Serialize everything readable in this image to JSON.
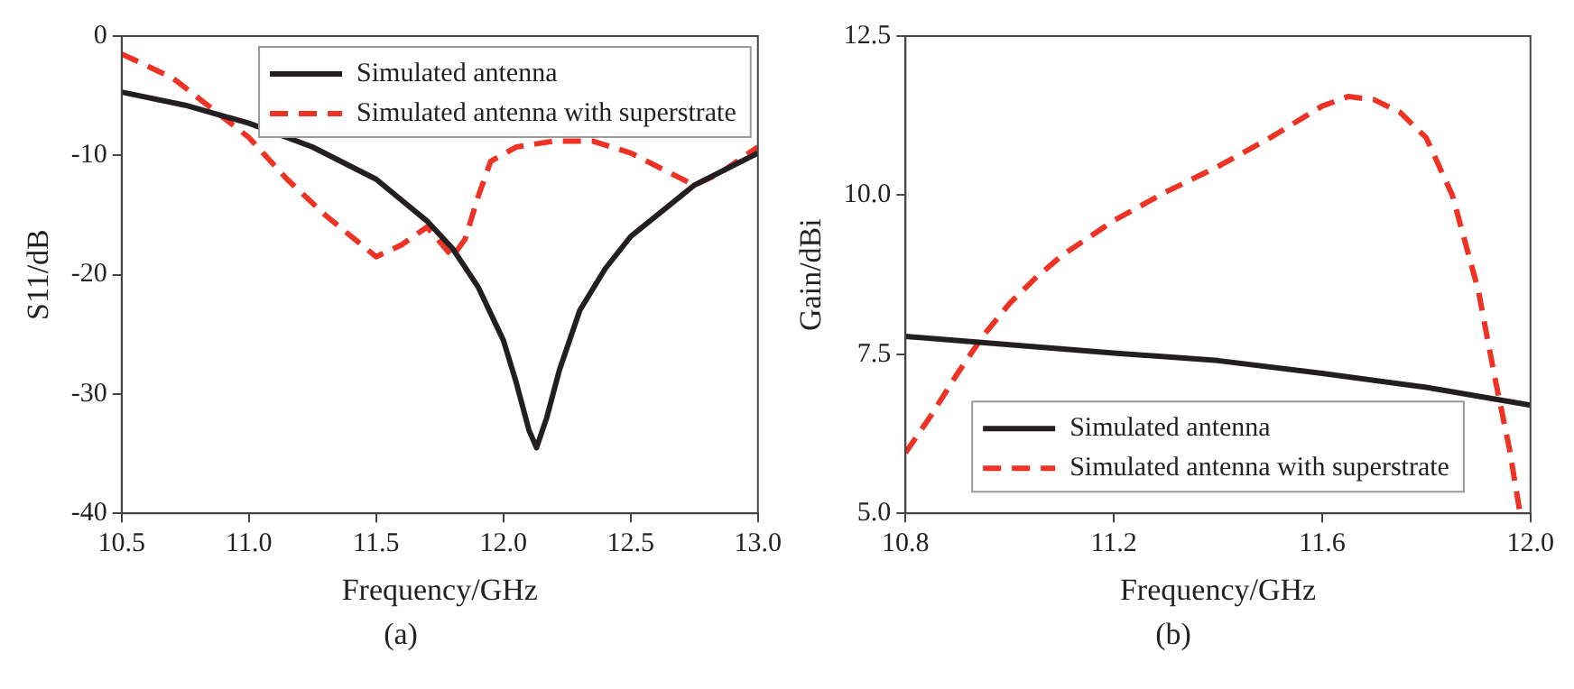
{
  "chart_data": [
    {
      "type": "line",
      "xlabel": "Frequency/GHz",
      "ylabel": "S11/dB",
      "xlim": [
        10.5,
        13.0
      ],
      "xticks": [
        {
          "value": 10.5,
          "label": "10.5"
        },
        {
          "value": 11,
          "label": "11.0"
        },
        {
          "value": 11.5,
          "label": "11.5"
        },
        {
          "value": 12,
          "label": "12.0"
        },
        {
          "value": 12.5,
          "label": "12.5"
        },
        {
          "value": 13,
          "label": "13.0"
        }
      ],
      "ylim": [
        -40,
        0
      ],
      "yticks": [
        -40,
        -30,
        -20,
        -10,
        0
      ],
      "legend": "top right",
      "annotations": [
        "(a)"
      ],
      "series": [
        {
          "name": "Simulated antenna",
          "color": "#231f20",
          "line_style": "solid",
          "x": [
            10.5,
            10.75,
            11.0,
            11.25,
            11.5,
            11.7,
            11.8,
            11.9,
            12.0,
            12.05,
            12.1,
            12.13,
            12.17,
            12.22,
            12.3,
            12.4,
            12.5,
            12.75,
            13.0
          ],
          "values": [
            -4.7,
            -5.8,
            -7.3,
            -9.3,
            -12,
            -15.5,
            -17.8,
            -21,
            -25.5,
            -29,
            -33,
            -34.5,
            -32,
            -28,
            -23,
            -19.5,
            -16.8,
            -12.5,
            -9.8
          ]
        },
        {
          "name": "Simulated antenna with superstrate",
          "color": "#ee3224",
          "line_style": "dashed",
          "x": [
            10.5,
            10.7,
            10.85,
            11.0,
            11.15,
            11.3,
            11.5,
            11.6,
            11.7,
            11.8,
            11.85,
            11.9,
            11.95,
            12.05,
            12.2,
            12.35,
            12.5,
            12.75,
            12.85,
            13.0
          ],
          "values": [
            -1.5,
            -3.5,
            -6,
            -8.5,
            -12,
            -15,
            -18.5,
            -17.5,
            -16,
            -18.5,
            -17,
            -13.5,
            -10.5,
            -9.3,
            -8.8,
            -8.8,
            -9.8,
            -12.5,
            -11.5,
            -9.3
          ]
        }
      ]
    },
    {
      "type": "line",
      "xlabel": "Frequency/GHz",
      "ylabel": "Gain/dBi",
      "xlim": [
        10.8,
        12.0
      ],
      "xticks": [
        10.8,
        11.2,
        11.6,
        {
          "value": 12,
          "label": "12.0"
        }
      ],
      "ylim": [
        5,
        12.5
      ],
      "yticks": [
        {
          "value": 5,
          "label": "5.0"
        },
        7.5,
        {
          "value": 10,
          "label": "10.0"
        },
        12.5
      ],
      "legend": "bottom",
      "annotations": [
        "(b)"
      ],
      "series": [
        {
          "name": "Simulated antenna",
          "color": "#231f20",
          "line_style": "solid",
          "x": [
            10.8,
            11.0,
            11.2,
            11.4,
            11.6,
            11.8,
            12.0
          ],
          "values": [
            7.78,
            7.65,
            7.52,
            7.4,
            7.2,
            6.98,
            6.7
          ]
        },
        {
          "name": "Simulated antenna with superstrate",
          "color": "#ee3224",
          "line_style": "dashed",
          "x": [
            10.8,
            10.85,
            10.9,
            10.95,
            11.0,
            11.05,
            11.1,
            11.2,
            11.3,
            11.4,
            11.5,
            11.6,
            11.65,
            11.7,
            11.75,
            11.8,
            11.85,
            11.9,
            11.93,
            11.96,
            11.98
          ],
          "values": [
            5.95,
            6.55,
            7.2,
            7.8,
            8.3,
            8.7,
            9.05,
            9.6,
            10.05,
            10.45,
            10.9,
            11.4,
            11.55,
            11.5,
            11.3,
            10.9,
            10,
            8.5,
            7.2,
            6.0,
            5.0
          ]
        }
      ]
    }
  ]
}
